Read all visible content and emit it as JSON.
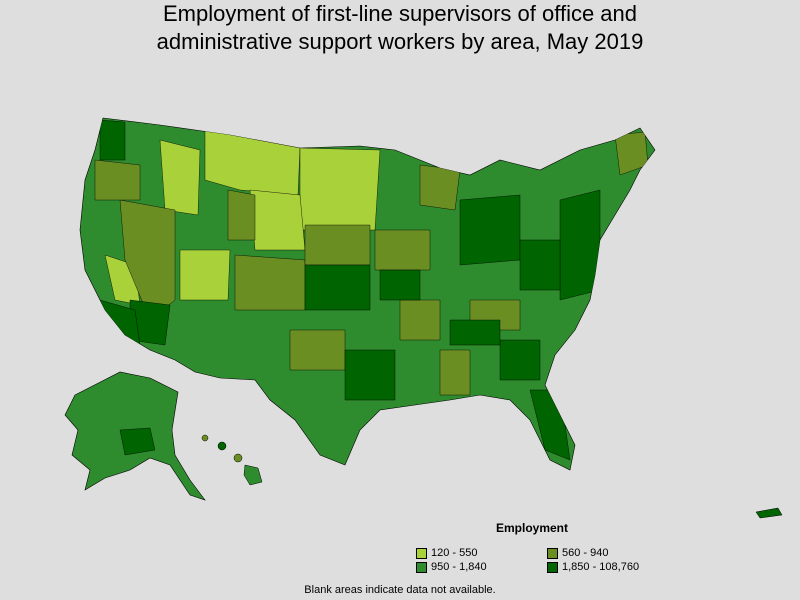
{
  "title_line1": "Employment of first-line supervisors of office and",
  "title_line2": "administrative support workers by area, May 2019",
  "legend": {
    "title": "Employment",
    "items": [
      {
        "label": "120 - 550",
        "color": "#a9d13a"
      },
      {
        "label": "560 - 940",
        "color": "#6b8e23"
      },
      {
        "label": "950 - 1,840",
        "color": "#2e8b2e"
      },
      {
        "label": "1,850 - 108,760",
        "color": "#006400"
      }
    ],
    "note": "Blank areas indicate data not available."
  }
}
